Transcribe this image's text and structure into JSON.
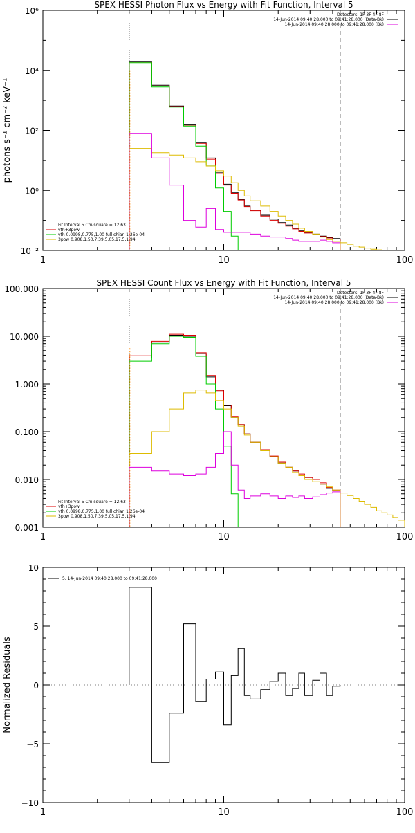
{
  "chart_data": [
    {
      "type": "line",
      "title": "SPEX HESSI Photon Flux vs Energy with Fit Function, Interval 5",
      "ylabel": "photons s⁻¹ cm⁻² keV⁻¹",
      "xlabel": "",
      "xscale": "log",
      "yscale": "log",
      "xlim": [
        1,
        100
      ],
      "ylim": [
        0.01,
        1000000
      ],
      "xticks": [
        "1",
        "10",
        "100"
      ],
      "yticks": [
        "10⁻²",
        "10⁰",
        "10²",
        "10⁴",
        "10⁶"
      ],
      "grid": false,
      "legend_top": [
        "Detectors: 1F 3F 4F 8F",
        "14-Jun-2014 09:40:28.000 to 09:41:28.000 (Data-Bk)",
        "14-Jun-2014 09:40:28.000 to 09:41:28.000 (Bk)"
      ],
      "legend_bottom": [
        "Fit Interval 5   Chi-square = 12.63",
        "vth+3pow",
        "vth 0.0998,0.775,1.00  full chian 1.26e-04",
        "3pow 0.908,1.50,7.39,5.05,17.5,1.94"
      ],
      "bin_edges": [
        3.0,
        4.0,
        5.0,
        6.0,
        7.0,
        8.0,
        9.0,
        10.0,
        11.0,
        12.0,
        13.0,
        14.0,
        16.0,
        18.0,
        20.0,
        22.0,
        24.0,
        26.0,
        28.0,
        31.0,
        34.0,
        37.0,
        40.0,
        44.0
      ],
      "series": [
        {
          "color": "#000000",
          "values": [
            20000,
            3200,
            650,
            160,
            40,
            12,
            4,
            1.6,
            0.85,
            0.5,
            0.3,
            0.22,
            0.15,
            0.11,
            0.085,
            0.07,
            0.055,
            0.045,
            0.04,
            0.035,
            0.03,
            0.027,
            0.025
          ]
        },
        {
          "color": "#dd0000",
          "values": [
            19000,
            3000,
            620,
            150,
            37,
            11,
            3.6,
            1.5,
            0.8,
            0.48,
            0.29,
            0.21,
            0.14,
            0.1,
            0.08,
            0.065,
            0.052,
            0.043,
            0.038,
            0.033,
            0.029,
            0.026,
            0.024
          ]
        },
        {
          "color": "#00cc00",
          "values": [
            18000,
            2800,
            600,
            140,
            30,
            7,
            1.2,
            0.2,
            0.03
          ]
        },
        {
          "color": "#ddbb00",
          "values": [
            25,
            18,
            15,
            12,
            9,
            6.5,
            4.5,
            3.0,
            1.8,
            1.0,
            0.65,
            0.45,
            0.3,
            0.2,
            0.14,
            0.1,
            0.075,
            0.055,
            0.043,
            0.035,
            0.028,
            0.023,
            0.02
          ]
        },
        {
          "color": "#dd00dd",
          "values": [
            80,
            12,
            1.5,
            0.1,
            0.06,
            0.25,
            0.05,
            0.04,
            0.04,
            0.04,
            0.04,
            0.035,
            0.03,
            0.028,
            0.028,
            0.025,
            0.022,
            0.02,
            0.02,
            0.02,
            0.022,
            0.02,
            0.018
          ]
        }
      ],
      "tail": {
        "color": "#ddbb00",
        "bin_edges": [
          44,
          48,
          52,
          56,
          60,
          65,
          70,
          75,
          80
        ],
        "values": [
          0.018,
          0.016,
          0.014,
          0.013,
          0.012,
          0.011,
          0.0105,
          0.0101
        ]
      }
    },
    {
      "type": "line",
      "title": "SPEX HESSI Count Flux vs Energy with Fit Function, Interval 5",
      "xlabel": "",
      "ylabel": "",
      "xscale": "log",
      "yscale": "log",
      "xlim": [
        1,
        100
      ],
      "ylim": [
        0.001,
        100
      ],
      "xticks": [
        "1",
        "10",
        "100"
      ],
      "yticks": [
        "0.001",
        "0.010",
        "0.100",
        "1.000",
        "10.000",
        "100.000"
      ],
      "grid": false,
      "legend_top": [
        "Detectors: 1F 3F 4F 8F",
        "14-Jun-2014 09:40:28.000 to 09:41:28.000 (Data-Bk)",
        "14-Jun-2014 09:40:28.000 to 09:41:28.000 (Bk)"
      ],
      "legend_bottom": [
        "Fit Interval 5   Chi-square = 12.63",
        "vth+3pow",
        "vth 0.0998,0.775,1.00  full chian 1.26e-04",
        "3pow 0.908,1.50,7.39,5.05,17.5,1.94"
      ],
      "bin_edges": [
        3.0,
        4.0,
        5.0,
        6.0,
        7.0,
        8.0,
        9.0,
        10.0,
        11.0,
        12.0,
        13.0,
        14.0,
        16.0,
        18.0,
        20.0,
        22.0,
        24.0,
        26.0,
        28.0,
        31.0,
        34.0,
        37.0,
        40.0,
        44.0
      ],
      "series": [
        {
          "color": "#000000",
          "values": [
            3.5,
            7.5,
            10.5,
            10.0,
            4.3,
            1.4,
            0.75,
            0.35,
            0.2,
            0.14,
            0.09,
            0.06,
            0.04,
            0.03,
            0.022,
            0.018,
            0.015,
            0.012,
            0.011,
            0.01,
            0.008,
            0.0065,
            0.0058
          ]
        },
        {
          "color": "#dd0000",
          "values": [
            3.9,
            7.8,
            11.0,
            10.5,
            4.5,
            1.5,
            0.72,
            0.36,
            0.21,
            0.14,
            0.09,
            0.06,
            0.042,
            0.031,
            0.023,
            0.018,
            0.015,
            0.013,
            0.011,
            0.01,
            0.0085,
            0.0068,
            0.006
          ]
        },
        {
          "color": "#00cc00",
          "values": [
            3.0,
            7.0,
            10.0,
            9.5,
            3.8,
            1.0,
            0.3,
            0.05,
            0.005,
            0.001
          ]
        },
        {
          "color": "#ddbb00",
          "values": [
            0.035,
            0.1,
            0.3,
            0.65,
            0.75,
            0.65,
            0.45,
            0.3,
            0.2,
            0.13,
            0.085,
            0.06,
            0.04,
            0.03,
            0.022,
            0.018,
            0.014,
            0.012,
            0.01,
            0.009,
            0.008,
            0.007,
            0.006
          ]
        },
        {
          "color": "#dd00dd",
          "values": [
            0.018,
            0.015,
            0.013,
            0.012,
            0.013,
            0.018,
            0.035,
            0.1,
            0.02,
            0.006,
            0.004,
            0.0045,
            0.005,
            0.0045,
            0.004,
            0.0045,
            0.0042,
            0.0045,
            0.004,
            0.0043,
            0.0048,
            0.0052,
            0.0055
          ]
        }
      ],
      "tail": {
        "color": "#ddbb00",
        "bin_edges": [
          44,
          48,
          52,
          56,
          60,
          65,
          70,
          75,
          80,
          86,
          92,
          100
        ],
        "values": [
          0.0052,
          0.0046,
          0.004,
          0.0035,
          0.003,
          0.0026,
          0.0022,
          0.002,
          0.0018,
          0.0016,
          0.0014
        ]
      }
    },
    {
      "type": "line",
      "title": "",
      "ylabel": "Normalized Residuals",
      "xlabel": "",
      "xscale": "log",
      "yscale": "linear",
      "xlim": [
        1,
        100
      ],
      "ylim": [
        -10,
        10
      ],
      "xticks": [
        "1",
        "10",
        "100"
      ],
      "yticks": [
        "−10",
        "−5",
        "0",
        "5",
        "10"
      ],
      "grid": false,
      "legend": "5, 14-Jun-2014 09:40:28.000 to 09:41:28.000",
      "bin_edges": [
        3.0,
        4.0,
        5.0,
        6.0,
        7.0,
        8.0,
        9.0,
        10.0,
        11.0,
        12.0,
        13.0,
        14.0,
        16.0,
        18.0,
        20.0,
        22.0,
        24.0,
        26.0,
        28.0,
        31.0,
        34.0,
        37.0,
        40.0,
        44.0
      ],
      "series": [
        {
          "color": "#000000",
          "values": [
            8.3,
            -6.6,
            -2.4,
            5.2,
            -1.4,
            0.5,
            1.1,
            -3.4,
            0.8,
            3.1,
            -0.9,
            -1.2,
            -0.4,
            0.3,
            1.0,
            -0.9,
            -0.3,
            1.0,
            -0.9,
            0.4,
            1.0,
            -0.9,
            -0.1
          ]
        }
      ]
    }
  ]
}
